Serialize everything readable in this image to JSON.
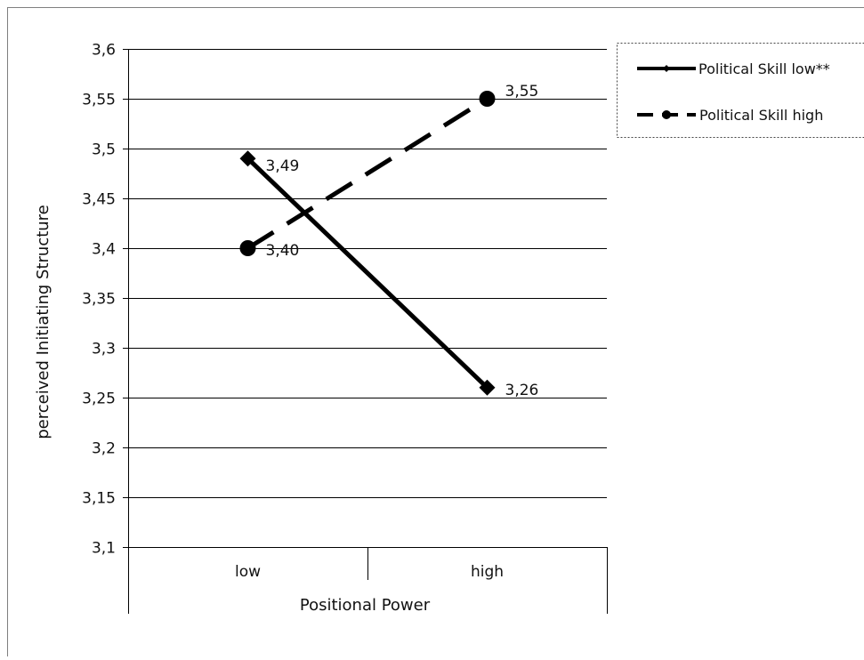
{
  "chart_data": {
    "type": "line",
    "xlabel": "Positional Power",
    "ylabel": "perceived  Initiating Structure",
    "categories": [
      "low",
      "high"
    ],
    "ylim": [
      3.1,
      3.6
    ],
    "yticks": [
      3.1,
      3.15,
      3.2,
      3.25,
      3.3,
      3.35,
      3.4,
      3.45,
      3.5,
      3.55,
      3.6
    ],
    "ytick_labels": [
      "3,1",
      "3,15",
      "3,2",
      "3,25",
      "3,3",
      "3,35",
      "3,4",
      "3,45",
      "3,5",
      "3,55",
      "3,6"
    ],
    "grid": true,
    "legend_position": "top-right",
    "series": [
      {
        "name": "Political Skill low**",
        "values": [
          3.49,
          3.26
        ],
        "data_labels": [
          "3,49",
          "3,26"
        ],
        "line_style": "solid",
        "marker": "diamond",
        "color": "#000000"
      },
      {
        "name": "Political Skill high",
        "values": [
          3.4,
          3.55
        ],
        "data_labels": [
          "3,40",
          "3,55"
        ],
        "line_style": "dashed",
        "marker": "circle",
        "color": "#000000"
      }
    ]
  }
}
